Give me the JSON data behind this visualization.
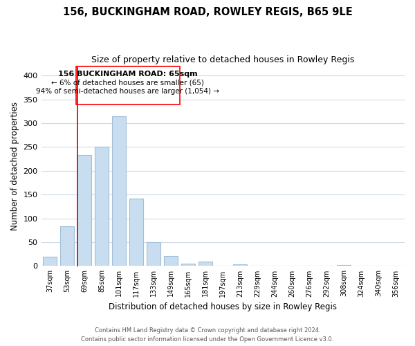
{
  "title": "156, BUCKINGHAM ROAD, ROWLEY REGIS, B65 9LE",
  "subtitle": "Size of property relative to detached houses in Rowley Regis",
  "xlabel": "Distribution of detached houses by size in Rowley Regis",
  "ylabel": "Number of detached properties",
  "bar_labels": [
    "37sqm",
    "53sqm",
    "69sqm",
    "85sqm",
    "101sqm",
    "117sqm",
    "133sqm",
    "149sqm",
    "165sqm",
    "181sqm",
    "197sqm",
    "213sqm",
    "229sqm",
    "244sqm",
    "260sqm",
    "276sqm",
    "292sqm",
    "308sqm",
    "324sqm",
    "340sqm",
    "356sqm"
  ],
  "bar_values": [
    20,
    83,
    233,
    251,
    315,
    141,
    50,
    21,
    5,
    10,
    0,
    4,
    0,
    0,
    0,
    0,
    0,
    2,
    0,
    0,
    0
  ],
  "bar_color": "#c8ddf0",
  "bar_edge_color": "#a0bfd8",
  "ylim": [
    0,
    420
  ],
  "yticks": [
    0,
    50,
    100,
    150,
    200,
    250,
    300,
    350,
    400
  ],
  "annotation_title": "156 BUCKINGHAM ROAD: 65sqm",
  "annotation_line1": "← 6% of detached houses are smaller (65)",
  "annotation_line2": "94% of semi-detached houses are larger (1,054) →",
  "footer_line1": "Contains HM Land Registry data © Crown copyright and database right 2024.",
  "footer_line2": "Contains public sector information licensed under the Open Government Licence v3.0.",
  "background_color": "#ffffff",
  "grid_color": "#d0daea",
  "vline_bar_idx": 2
}
